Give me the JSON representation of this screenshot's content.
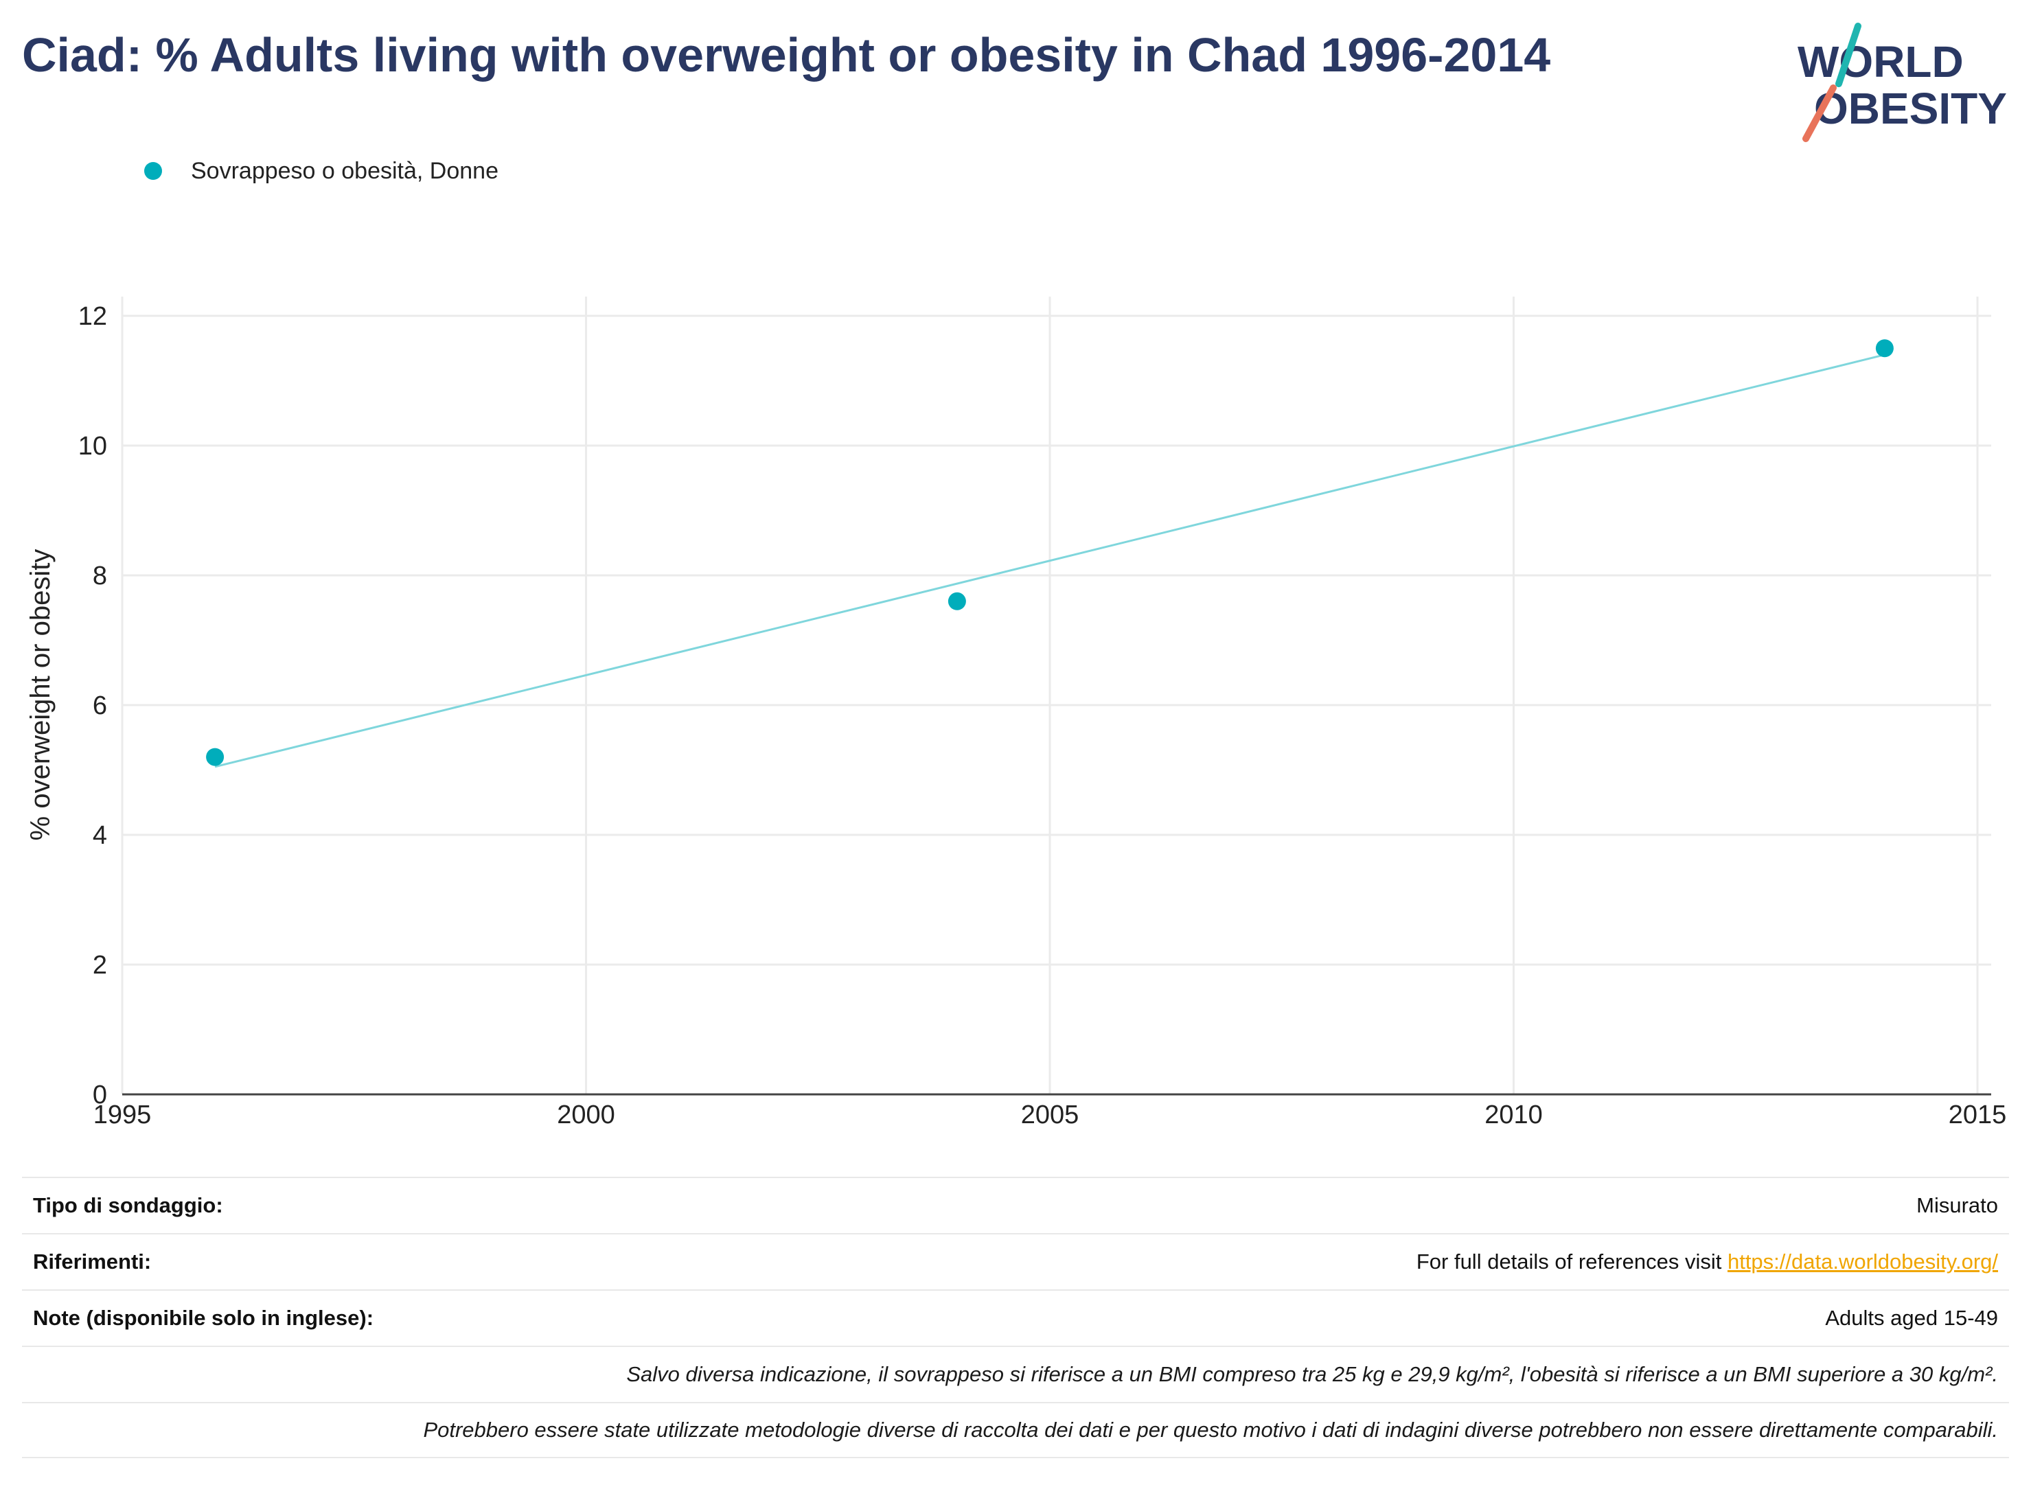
{
  "header": {
    "title": "Ciad: % Adults living with overweight or obesity in Chad 1996-2014",
    "logo": {
      "line1": "WORLD",
      "line2": "OBESITY",
      "primary_color": "#2a3863",
      "accent_teal": "#1fb5b0",
      "accent_coral": "#e8735a"
    }
  },
  "legend": {
    "items": [
      {
        "label": "Sovrappeso o obesità, Donne",
        "color": "#00adbb"
      }
    ]
  },
  "chart_data": {
    "type": "scatter",
    "title": "Ciad: % Adults living with overweight or obesity in Chad 1996-2014",
    "xlabel": "",
    "ylabel": "% overweight or obesity",
    "xlim": [
      1995,
      2015
    ],
    "ylim": [
      0,
      12
    ],
    "xticks": [
      1995,
      2000,
      2005,
      2010,
      2015
    ],
    "yticks": [
      0,
      2,
      4,
      6,
      8,
      10,
      12
    ],
    "grid": true,
    "legend_position": "top-left",
    "series": [
      {
        "name": "Sovrappeso o obesità, Donne",
        "color": "#00adbb",
        "x": [
          1996,
          2004,
          2014
        ],
        "y": [
          5.2,
          7.6,
          11.5
        ]
      }
    ],
    "trendline": {
      "color": "#7fd6dc",
      "x": [
        1996,
        2014
      ],
      "y": [
        5.05,
        11.4
      ]
    }
  },
  "table": {
    "rows": [
      {
        "key": "Tipo di sondaggio:",
        "value": "Misurato"
      },
      {
        "key": "Riferimenti:",
        "value_prefix": "For full details of references visit ",
        "link": "https://data.worldobesity.org/"
      },
      {
        "key": "Note (disponibile solo in inglese):",
        "value": "Adults aged 15-49"
      }
    ],
    "notes": [
      "Salvo diversa indicazione, il sovrappeso si riferisce a un BMI compreso tra 25 kg e 29,9 kg/m², l'obesità si riferisce a un BMI superiore a 30 kg/m².",
      "Potrebbero essere state utilizzate metodologie diverse di raccolta dei dati e per questo motivo i dati di indagini diverse potrebbero non essere direttamente comparabili."
    ]
  }
}
